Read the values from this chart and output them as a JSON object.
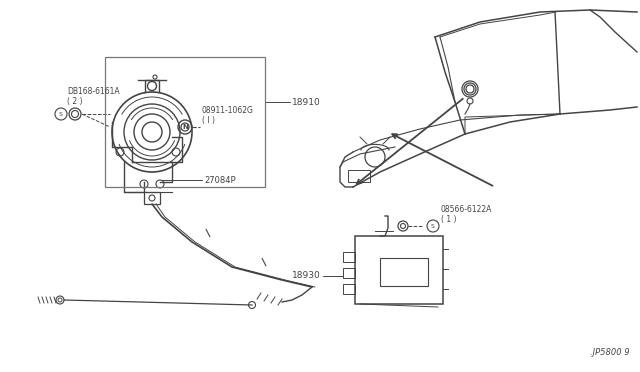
{
  "bg_color": "#ffffff",
  "line_color": "#444444",
  "fig_width": 6.4,
  "fig_height": 3.72,
  "dpi": 100,
  "labels": {
    "part_18910": "18910",
    "part_18930": "18930",
    "part_27084P": "27084P",
    "part_08911": "08911-1062G\n( I )",
    "part_08168": "DB168-6161A\n( 2 )",
    "part_08566": "08566-6122A\n( 1 )",
    "fig_code": ".JP5800 9"
  }
}
